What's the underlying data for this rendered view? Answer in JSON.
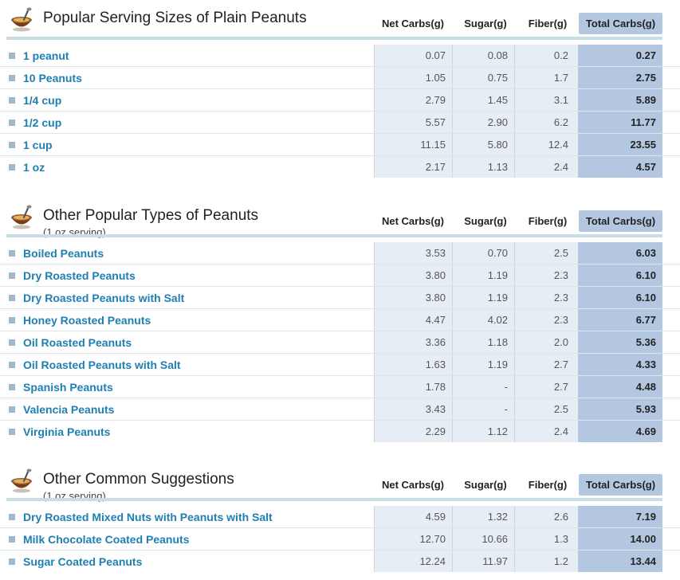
{
  "headers": {
    "net": "Net Carbs(g)",
    "sugar": "Sugar(g)",
    "fiber": "Fiber(g)",
    "total": "Total Carbs(g)"
  },
  "colors": {
    "link": "#1f7fb3",
    "total_bg": "#b3c7e0",
    "cell_bg": "#e6edf4",
    "rule": "#c9dde7"
  },
  "sections": [
    {
      "title": "Popular Serving Sizes of Plain Peanuts",
      "subtitle": "",
      "rows": [
        {
          "name": "1 peanut",
          "net": "0.07",
          "sugar": "0.08",
          "fiber": "0.2",
          "total": "0.27"
        },
        {
          "name": "10 Peanuts",
          "net": "1.05",
          "sugar": "0.75",
          "fiber": "1.7",
          "total": "2.75"
        },
        {
          "name": "1/4 cup",
          "net": "2.79",
          "sugar": "1.45",
          "fiber": "3.1",
          "total": "5.89"
        },
        {
          "name": "1/2 cup",
          "net": "5.57",
          "sugar": "2.90",
          "fiber": "6.2",
          "total": "11.77"
        },
        {
          "name": "1 cup",
          "net": "11.15",
          "sugar": "5.80",
          "fiber": "12.4",
          "total": "23.55"
        },
        {
          "name": "1 oz",
          "net": "2.17",
          "sugar": "1.13",
          "fiber": "2.4",
          "total": "4.57"
        }
      ]
    },
    {
      "title": "Other Popular Types of Peanuts",
      "subtitle": "(1 oz serving)",
      "rows": [
        {
          "name": "Boiled Peanuts",
          "net": "3.53",
          "sugar": "0.70",
          "fiber": "2.5",
          "total": "6.03"
        },
        {
          "name": "Dry Roasted Peanuts",
          "net": "3.80",
          "sugar": "1.19",
          "fiber": "2.3",
          "total": "6.10"
        },
        {
          "name": "Dry Roasted Peanuts with Salt",
          "net": "3.80",
          "sugar": "1.19",
          "fiber": "2.3",
          "total": "6.10"
        },
        {
          "name": "Honey Roasted Peanuts",
          "net": "4.47",
          "sugar": "4.02",
          "fiber": "2.3",
          "total": "6.77"
        },
        {
          "name": "Oil Roasted Peanuts",
          "net": "3.36",
          "sugar": "1.18",
          "fiber": "2.0",
          "total": "5.36"
        },
        {
          "name": "Oil Roasted Peanuts with Salt",
          "net": "1.63",
          "sugar": "1.19",
          "fiber": "2.7",
          "total": "4.33"
        },
        {
          "name": "Spanish Peanuts",
          "net": "1.78",
          "sugar": "-",
          "fiber": "2.7",
          "total": "4.48"
        },
        {
          "name": "Valencia Peanuts",
          "net": "3.43",
          "sugar": "-",
          "fiber": "2.5",
          "total": "5.93"
        },
        {
          "name": "Virginia Peanuts",
          "net": "2.29",
          "sugar": "1.12",
          "fiber": "2.4",
          "total": "4.69"
        }
      ]
    },
    {
      "title": "Other Common Suggestions",
      "subtitle": "(1 oz serving)",
      "rows": [
        {
          "name": "Dry Roasted Mixed Nuts with Peanuts with Salt",
          "net": "4.59",
          "sugar": "1.32",
          "fiber": "2.6",
          "total": "7.19"
        },
        {
          "name": "Milk Chocolate Coated Peanuts",
          "net": "12.70",
          "sugar": "10.66",
          "fiber": "1.3",
          "total": "14.00"
        },
        {
          "name": "Sugar Coated Peanuts",
          "net": "12.24",
          "sugar": "11.97",
          "fiber": "1.2",
          "total": "13.44"
        }
      ]
    }
  ]
}
